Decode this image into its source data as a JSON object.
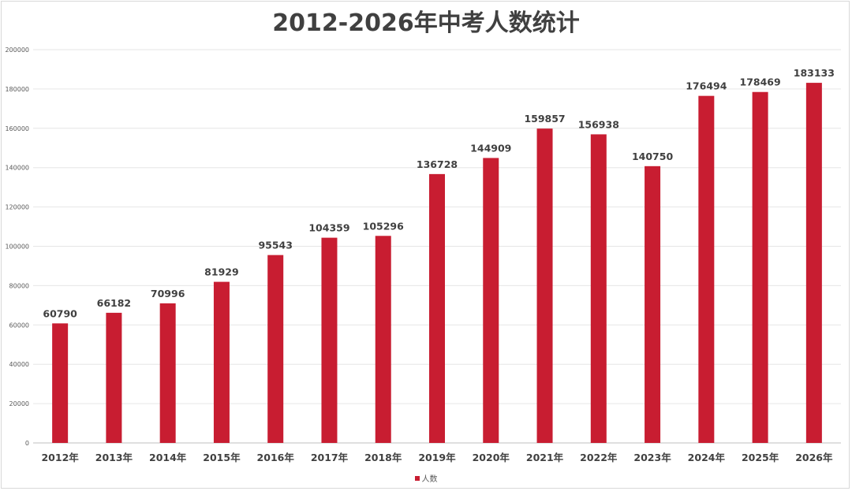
{
  "chart_data": {
    "type": "bar",
    "title": "2012-2026年中考人数统计",
    "categories": [
      "2012年",
      "2013年",
      "2014年",
      "2015年",
      "2016年",
      "2017年",
      "2018年",
      "2019年",
      "2020年",
      "2021年",
      "2022年",
      "2023年",
      "2024年",
      "2025年",
      "2026年"
    ],
    "series": [
      {
        "name": "人数",
        "color": "#c81d31",
        "values": [
          60790,
          66182,
          70996,
          81929,
          95543,
          104359,
          105296,
          136728,
          144909,
          159857,
          156938,
          140750,
          176494,
          178469,
          183133
        ]
      }
    ],
    "ylim": [
      0,
      200000
    ],
    "yticks": [
      0,
      20000,
      40000,
      60000,
      80000,
      100000,
      120000,
      140000,
      160000,
      180000,
      200000
    ],
    "grid": true,
    "legend_position": "bottom"
  }
}
